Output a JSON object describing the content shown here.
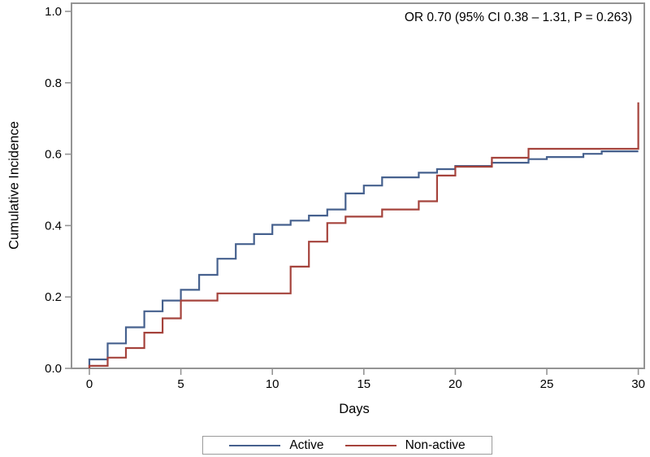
{
  "chart_data": {
    "type": "line",
    "subtype": "step-cumulative-incidence",
    "title": "",
    "annotation": "OR 0.70 (95% CI 0.38 – 1.31, P = 0.263)",
    "xlabel": "Days",
    "ylabel": "Cumulative Incidence",
    "xlim": [
      0,
      30
    ],
    "ylim": [
      0.0,
      1.0
    ],
    "x_ticks": [
      "0",
      "5",
      "10",
      "15",
      "20",
      "25",
      "30"
    ],
    "y_ticks": [
      "0.0",
      "0.2",
      "0.4",
      "0.6",
      "0.8",
      "1.0"
    ],
    "grid": false,
    "legend_position": "bottom-center",
    "frame_color": "#949494",
    "series": [
      {
        "name": "Active",
        "color": "#46618e",
        "points": [
          [
            0,
            0.025
          ],
          [
            1,
            0.07
          ],
          [
            2,
            0.115
          ],
          [
            3,
            0.16
          ],
          [
            4,
            0.19
          ],
          [
            5,
            0.22
          ],
          [
            6,
            0.262
          ],
          [
            7,
            0.307
          ],
          [
            8,
            0.348
          ],
          [
            9,
            0.376
          ],
          [
            10,
            0.402
          ],
          [
            11,
            0.414
          ],
          [
            12,
            0.428
          ],
          [
            13,
            0.445
          ],
          [
            14,
            0.49
          ],
          [
            15,
            0.512
          ],
          [
            16,
            0.535
          ],
          [
            18,
            0.548
          ],
          [
            19,
            0.558
          ],
          [
            20,
            0.567
          ],
          [
            22,
            0.576
          ],
          [
            24,
            0.586
          ],
          [
            25,
            0.592
          ],
          [
            27,
            0.601
          ],
          [
            28,
            0.608
          ],
          [
            30,
            0.608
          ]
        ]
      },
      {
        "name": "Non-active",
        "color": "#a5433c",
        "points": [
          [
            0,
            0.007
          ],
          [
            1,
            0.03
          ],
          [
            2,
            0.057
          ],
          [
            3,
            0.1
          ],
          [
            4,
            0.14
          ],
          [
            5,
            0.19
          ],
          [
            7,
            0.21
          ],
          [
            11,
            0.285
          ],
          [
            12,
            0.355
          ],
          [
            13,
            0.407
          ],
          [
            14,
            0.425
          ],
          [
            16,
            0.445
          ],
          [
            18,
            0.468
          ],
          [
            19,
            0.54
          ],
          [
            20,
            0.565
          ],
          [
            22,
            0.59
          ],
          [
            24,
            0.615
          ],
          [
            30,
            0.745
          ]
        ]
      }
    ]
  }
}
